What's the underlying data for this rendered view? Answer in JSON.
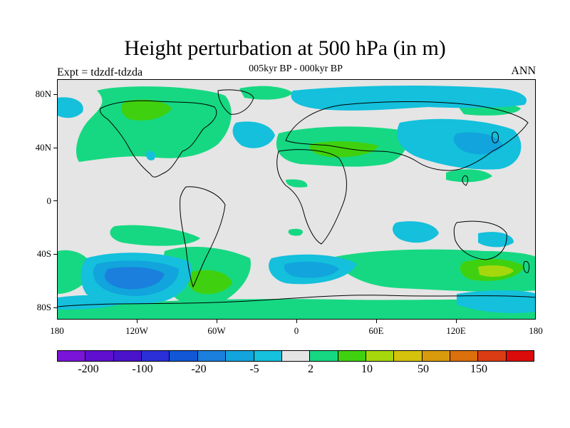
{
  "header": {
    "title": "Height perturbation at 500 hPa (in m)",
    "subtitle": "005kyr BP - 000kyr BP",
    "left_label": "Expt = tdzdf-tdzda",
    "right_label": "ANN"
  },
  "axes": {
    "lat_labels": [
      "80N",
      "40N",
      "0",
      "40S",
      "80S"
    ],
    "lon_labels": [
      "180",
      "120W",
      "60W",
      "0",
      "60E",
      "120E",
      "180"
    ]
  },
  "colorbar": {
    "colors": [
      "#7a14d6",
      "#5f0fd0",
      "#4a13cc",
      "#2a2fd8",
      "#1157d6",
      "#1a7fdd",
      "#12a4dc",
      "#14c0dc",
      "#e5e5e5",
      "#16d882",
      "#3fd10f",
      "#a6d70d",
      "#d4c20c",
      "#d99a0c",
      "#db6f0c",
      "#dc3c13",
      "#dc0b0b"
    ],
    "labels": [
      "-200",
      "-100",
      "-20",
      "-5",
      "2",
      "10",
      "50",
      "150"
    ]
  },
  "map_colors": {
    "background": "#e5e5e5",
    "green": "#16d882",
    "bright_green": "#3fd10f",
    "yellow_green": "#a6d70d",
    "cyan": "#14c0dc",
    "light_blue": "#12a4dc",
    "mid_blue": "#1a7fdd"
  }
}
